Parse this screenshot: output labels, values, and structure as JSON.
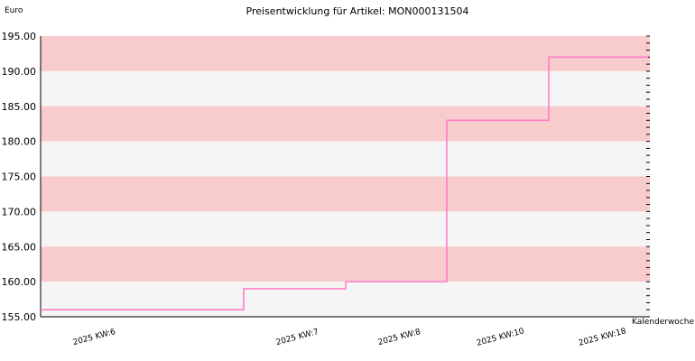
{
  "chart_data": {
    "type": "line",
    "step": true,
    "title": "Preisentwicklung für Artikel: MON000131504",
    "ylabel": "Euro",
    "xlabel": "Kalenderwoche",
    "categories": [
      "2025 KW:6",
      "2025 KW:7",
      "2025 KW:8",
      "2025 KW:10",
      "2025 KW:18"
    ],
    "series": [
      {
        "values": [
          156.0,
          159.0,
          160.0,
          183.0,
          192.0
        ]
      }
    ],
    "ylim": [
      155,
      195
    ],
    "yticks": [
      "155.00",
      "160.00",
      "165.00",
      "170.00",
      "175.00",
      "180.00",
      "185.00",
      "190.00",
      "195.00"
    ],
    "grid": false,
    "legend": "none",
    "colors": {
      "line": "#ff7fc8",
      "band_alt": "#f8cccc",
      "band_base": "#f5f5f5",
      "axis": "#000000"
    }
  }
}
